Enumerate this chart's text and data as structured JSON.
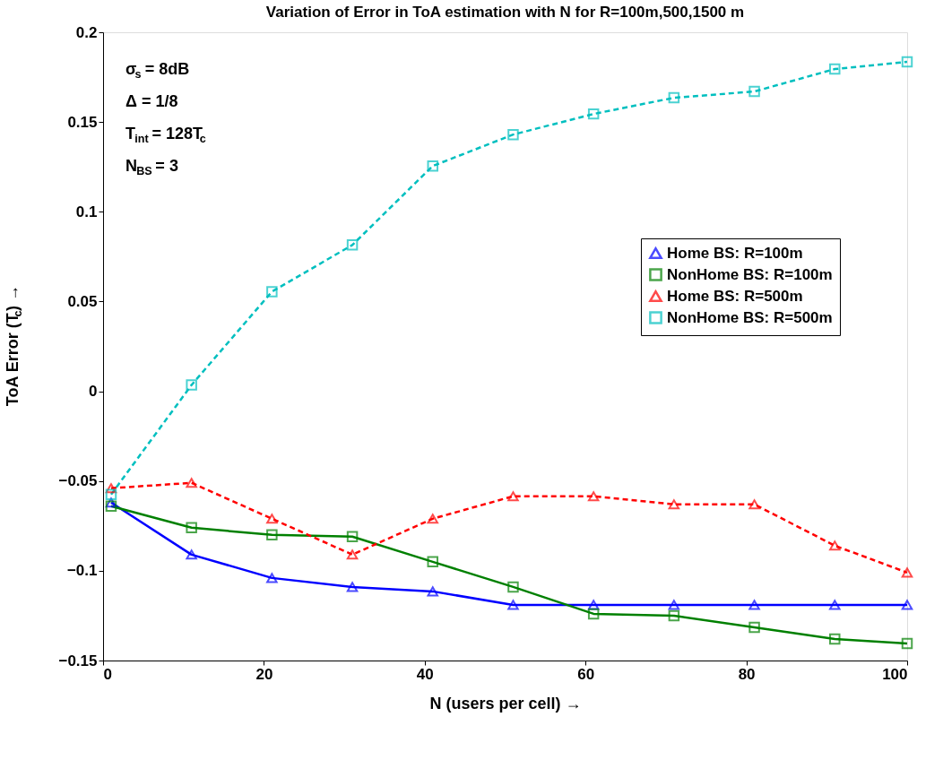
{
  "chart_data": {
    "type": "line",
    "title": "Variation of Error in ToA estimation with N for R=100m,500,1500 m",
    "xlabel": "N (users per cell) →",
    "ylabel": "ToA Error (T$_{c}$) →",
    "x": [
      1,
      11,
      21,
      31,
      41,
      51,
      61,
      71,
      81,
      91,
      100
    ],
    "series": [
      {
        "name": "Home BS: R=100m",
        "color": "#0000ff",
        "marker": "triangle",
        "line_style": "solid",
        "values": [
          -0.062,
          -0.091,
          -0.104,
          -0.109,
          -0.1115,
          -0.119,
          -0.119,
          -0.119,
          -0.119,
          -0.119,
          -0.119
        ]
      },
      {
        "name": "NonHome BS: R=100m",
        "color": "#008000",
        "marker": "square",
        "line_style": "solid",
        "values": [
          -0.064,
          -0.076,
          -0.08,
          -0.081,
          -0.095,
          -0.109,
          -0.124,
          -0.125,
          -0.1315,
          -0.138,
          -0.1405
        ]
      },
      {
        "name": "Home BS: R=500m",
        "color": "#ff0000",
        "marker": "triangle",
        "line_style": "dashed",
        "values": [
          -0.054,
          -0.051,
          -0.071,
          -0.091,
          -0.071,
          -0.0585,
          -0.0585,
          -0.063,
          -0.063,
          -0.086,
          -0.101
        ]
      },
      {
        "name": "NonHome BS: R=500m",
        "color": "#00bfbf",
        "marker": "square",
        "line_style": "dashed",
        "values": [
          -0.0575,
          0.0035,
          0.0555,
          0.0815,
          0.1255,
          0.143,
          0.1545,
          0.1635,
          0.167,
          0.1795,
          0.1835
        ]
      }
    ],
    "xlim": [
      0,
      100
    ],
    "xticks": [
      0,
      20,
      40,
      60,
      80,
      100
    ],
    "ylim": [
      -0.15,
      0.2
    ],
    "yticks": [
      -0.15,
      -0.1,
      -0.05,
      0,
      0.05,
      0.1,
      0.15,
      0.2
    ],
    "grid": false,
    "legend": "right",
    "annotations": [
      "σ$_{s}$ = 8dB",
      "Δ = 1/8",
      "T$_{int}$ = 128T$_{c}$",
      "N$_{BS}$ = 3"
    ]
  }
}
